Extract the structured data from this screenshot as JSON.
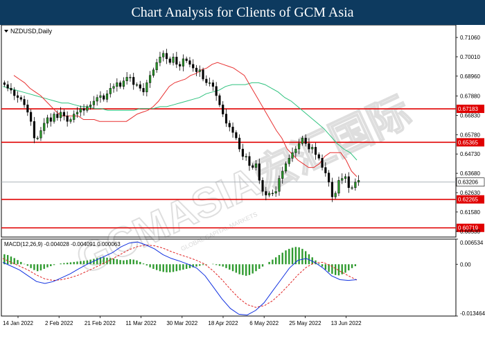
{
  "header": {
    "title": "Chart Analysis for Clients of GCM Asia"
  },
  "watermark": {
    "text": "GCMASIA宏汇国际",
    "subtext": "GLOBAL CAPITAL MARKETS"
  },
  "chart_data": [
    {
      "type": "candlestick",
      "symbol_label": "NZDUSD,Daily",
      "ylim": [
        0.6022,
        0.7174
      ],
      "x_ticks": [
        "14 Jan 2022",
        "2 Feb 2022",
        "21 Feb 2022",
        "11 Mar 2022",
        "30 Mar 2022",
        "18 Apr 2022",
        "6 May 2022",
        "25 May 2022",
        "13 Jun 2022"
      ],
      "y_ticks": [
        "0.71060",
        "0.70010",
        "0.68960",
        "0.67880",
        "0.66830",
        "0.65780",
        "0.64730",
        "0.63680",
        "0.62630",
        "0.61580",
        "0.60530"
      ],
      "levels": [
        {
          "value": 0.67183,
          "label": "0.67183",
          "color": "#e00000"
        },
        {
          "value": 0.65365,
          "label": "0.65365",
          "color": "#e00000"
        },
        {
          "value": 0.62265,
          "label": "0.62265",
          "color": "#e00000"
        },
        {
          "value": 0.60719,
          "label": "0.60719",
          "color": "#e00000"
        }
      ],
      "current_price": {
        "value": 0.63206,
        "label": "0.63206"
      },
      "closes": [
        0.685,
        0.683,
        0.682,
        0.679,
        0.678,
        0.677,
        0.674,
        0.67,
        0.665,
        0.656,
        0.656,
        0.66,
        0.664,
        0.667,
        0.665,
        0.669,
        0.667,
        0.67,
        0.668,
        0.665,
        0.666,
        0.669,
        0.67,
        0.672,
        0.671,
        0.673,
        0.674,
        0.676,
        0.678,
        0.679,
        0.677,
        0.68,
        0.683,
        0.684,
        0.686,
        0.684,
        0.687,
        0.689,
        0.689,
        0.685,
        0.685,
        0.683,
        0.681,
        0.686,
        0.69,
        0.693,
        0.697,
        0.7,
        0.702,
        0.699,
        0.697,
        0.7,
        0.696,
        0.695,
        0.699,
        0.698,
        0.696,
        0.694,
        0.692,
        0.693,
        0.688,
        0.686,
        0.686,
        0.684,
        0.679,
        0.674,
        0.669,
        0.664,
        0.662,
        0.659,
        0.656,
        0.65,
        0.646,
        0.646,
        0.641,
        0.64,
        0.642,
        0.633,
        0.627,
        0.625,
        0.626,
        0.626,
        0.627,
        0.634,
        0.638,
        0.642,
        0.645,
        0.648,
        0.65,
        0.653,
        0.656,
        0.653,
        0.65,
        0.651,
        0.647,
        0.645,
        0.64,
        0.637,
        0.632,
        0.624,
        0.626,
        0.633,
        0.634,
        0.635,
        0.629,
        0.629,
        0.632,
        0.633
      ],
      "ma_red": [
        0.69,
        0.688,
        0.686,
        0.683,
        0.681,
        0.679,
        0.676,
        0.673,
        0.67,
        0.668,
        0.668,
        0.668,
        0.668,
        0.666,
        0.666,
        0.666,
        0.665,
        0.665,
        0.665,
        0.665,
        0.665,
        0.665,
        0.667,
        0.669,
        0.67,
        0.671,
        0.673,
        0.676,
        0.68,
        0.684,
        0.686,
        0.687,
        0.688,
        0.69,
        0.691,
        0.693,
        0.694,
        0.696,
        0.697,
        0.696,
        0.695,
        0.694,
        0.692,
        0.69,
        0.685,
        0.68,
        0.675,
        0.67,
        0.665,
        0.66,
        0.656,
        0.65,
        0.647,
        0.644,
        0.642,
        0.64,
        0.64,
        0.642,
        0.646,
        0.648,
        0.648,
        0.648,
        0.644,
        0.638,
        0.635
      ],
      "ma_green": [
        0.684,
        0.683,
        0.682,
        0.681,
        0.68,
        0.679,
        0.678,
        0.677,
        0.676,
        0.675,
        0.675,
        0.674,
        0.673,
        0.673,
        0.672,
        0.672,
        0.671,
        0.671,
        0.671,
        0.671,
        0.671,
        0.672,
        0.672,
        0.672,
        0.673,
        0.673,
        0.674,
        0.675,
        0.676,
        0.677,
        0.678,
        0.68,
        0.681,
        0.682,
        0.684,
        0.685,
        0.685,
        0.685,
        0.686,
        0.686,
        0.685,
        0.683,
        0.681,
        0.678,
        0.676,
        0.673,
        0.67,
        0.667,
        0.664,
        0.661,
        0.657,
        0.653,
        0.65,
        0.648,
        0.644
      ],
      "grid": false
    },
    {
      "type": "macd",
      "label": "MACD(12,26,9) -0.004028 -0.004091 0.000063",
      "ylim": [
        -0.013464,
        0.006534
      ],
      "y_ticks": [
        "0.006534",
        "0.00",
        "-0.013464"
      ],
      "histogram": [
        0.0026,
        0.0024,
        0.002,
        0.0016,
        0.0011,
        0.0006,
        0.0001,
        -0.0004,
        -0.001,
        -0.0015,
        -0.0018,
        -0.0016,
        -0.0012,
        -0.0008,
        -0.0005,
        -0.0002,
        0.0,
        0.0002,
        0.0003,
        0.0004,
        0.0005,
        0.0006,
        0.0007,
        0.0008,
        0.0009,
        0.001,
        0.0012,
        0.0014,
        0.0016,
        0.0018,
        0.0018,
        0.0017,
        0.0016,
        0.0015,
        0.0013,
        0.0011,
        0.001,
        0.0011,
        0.0013,
        0.0012,
        0.001,
        0.0006,
        0.0002,
        -0.0003,
        -0.0008,
        -0.0012,
        -0.0015,
        -0.0018,
        -0.002,
        -0.0021,
        -0.0021,
        -0.002,
        -0.0018,
        -0.0016,
        -0.0014,
        -0.0012,
        -0.001,
        -0.0008,
        -0.0006,
        -0.0004,
        -0.0002,
        -0.0001,
        0.0,
        0.0001,
        -0.0002,
        -0.0004,
        -0.0006,
        -0.001,
        -0.0014,
        -0.0018,
        -0.0022,
        -0.0026,
        -0.0028,
        -0.003,
        -0.0028,
        -0.0024,
        -0.0018,
        -0.0012,
        -0.0006,
        0.0,
        0.0006,
        0.0012,
        0.0018,
        0.0024,
        0.003,
        0.0036,
        0.004,
        0.0043,
        0.0045,
        0.0044,
        0.004,
        0.0034,
        0.0026,
        0.0018,
        0.001,
        0.0002,
        -0.0006,
        -0.0014,
        -0.002,
        -0.0025,
        -0.0028,
        -0.0029,
        -0.0026,
        -0.0022,
        -0.0016,
        -0.001,
        -0.0005,
        0.0
      ],
      "macd_line": [
        0.0005,
        -0.0005,
        -0.0015,
        -0.003,
        -0.0045,
        -0.005,
        -0.0045,
        -0.0035,
        -0.0025,
        -0.0012,
        0.0,
        0.001,
        0.002,
        0.003,
        0.0045,
        0.0055,
        0.0058,
        0.005,
        0.004,
        0.0025,
        0.0015,
        0.0008,
        0.0,
        -0.001,
        -0.003,
        -0.006,
        -0.009,
        -0.0115,
        -0.013,
        -0.0132,
        -0.012,
        -0.01,
        -0.007,
        -0.004,
        -0.001,
        0.001,
        0.0015,
        0.0005,
        -0.001,
        -0.003,
        -0.004,
        -0.0042,
        -0.004
      ],
      "signal_line": [
        0.0015,
        0.0005,
        -0.0005,
        -0.0015,
        -0.0028,
        -0.0038,
        -0.0042,
        -0.004,
        -0.0035,
        -0.0028,
        -0.0018,
        -0.0008,
        0.0003,
        0.0014,
        0.0026,
        0.0038,
        0.0046,
        0.005,
        0.0048,
        0.0042,
        0.0033,
        0.0025,
        0.0018,
        0.001,
        0.0,
        -0.0018,
        -0.004,
        -0.0065,
        -0.0088,
        -0.0105,
        -0.0112,
        -0.0108,
        -0.0095,
        -0.0075,
        -0.0052,
        -0.0028,
        -0.0008,
        0.0004,
        0.0005,
        -0.0005,
        -0.0018,
        -0.003,
        -0.0041
      ],
      "colors": {
        "histogram": "#2e9a2e",
        "macd_line": "#1030e0",
        "signal_line": "#e02020",
        "ma_red": "#e83030",
        "ma_green": "#2ec27e",
        "bull": "#2a9a2a",
        "bear": "#000000"
      }
    }
  ]
}
